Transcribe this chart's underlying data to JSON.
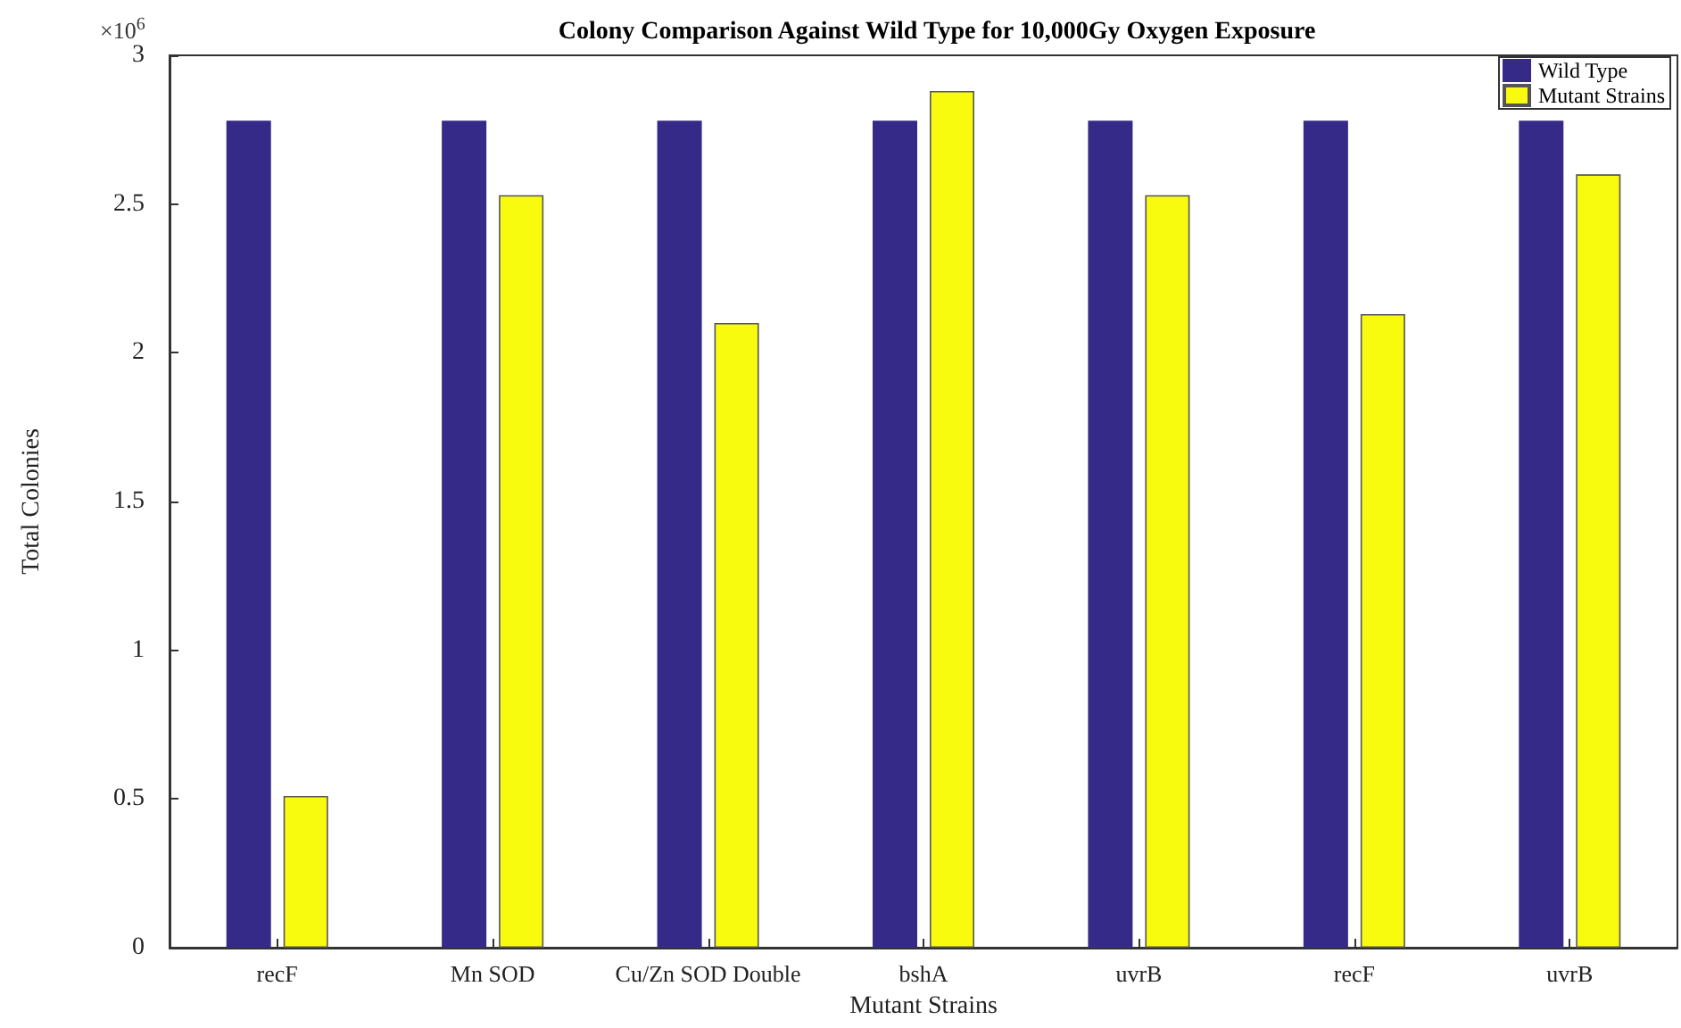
{
  "chart_data": {
    "type": "bar",
    "title": "Colony Comparison Against Wild Type for 10,000Gy Oxygen Exposure",
    "xlabel": "Mutant Strains",
    "ylabel": "Total Colonies",
    "annotations": [
      "×10$^{6}$"
    ],
    "categories": [
      "recF",
      "Mn SOD",
      "Cu/Zn SOD Double",
      "bshA",
      "uvrB",
      "recF",
      "uvrB"
    ],
    "series": [
      {
        "name": "Wild Type",
        "color": "#352a87",
        "values": [
          2.78,
          2.78,
          2.78,
          2.78,
          2.78,
          2.78,
          2.78
        ]
      },
      {
        "name": "Mutant Strains",
        "color": "#f9fb0e",
        "values": [
          0.51,
          2.53,
          2.1,
          2.88,
          2.53,
          2.13,
          2.6
        ]
      }
    ],
    "ylim": [
      0,
      3
    ],
    "yticks": [
      0,
      0.5,
      1,
      1.5,
      2,
      2.5,
      3
    ],
    "grid": false,
    "legend": "top right"
  }
}
